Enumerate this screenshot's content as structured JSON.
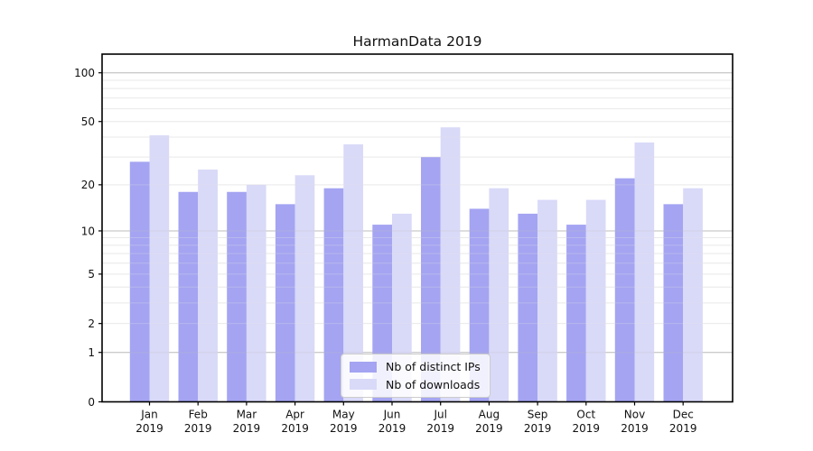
{
  "title": "HarmanData 2019",
  "colors": {
    "distinct_ips_bar": "#a4a4f2",
    "downloads_bar": "#d9d9f8",
    "grid_minor": "#eaeaea",
    "grid_major": "#bdbdbd",
    "axis": "#000000",
    "text": "#111111",
    "legend_border": "#cccccc"
  },
  "legend": {
    "items": [
      {
        "label": "Nb of distinct IPs",
        "color": "#a4a4f2"
      },
      {
        "label": "Nb of downloads",
        "color": "#d9d9f8"
      }
    ]
  },
  "chart_data": {
    "type": "bar",
    "title": "HarmanData 2019",
    "xlabel": "",
    "ylabel": "",
    "scale": "log1p",
    "grid": true,
    "legend_position": "lower center",
    "categories": [
      "Jan",
      "Feb",
      "Mar",
      "Apr",
      "May",
      "Jun",
      "Jul",
      "Aug",
      "Sep",
      "Oct",
      "Nov",
      "Dec"
    ],
    "year": "2019",
    "series": [
      {
        "name": "Nb of distinct IPs",
        "color": "#a4a4f2",
        "values": [
          28,
          18,
          18,
          15,
          19,
          11,
          30,
          14,
          13,
          11,
          22,
          15
        ]
      },
      {
        "name": "Nb of downloads",
        "color": "#d9d9f8",
        "values": [
          41,
          25,
          20,
          23,
          36,
          13,
          46,
          19,
          16,
          16,
          37,
          19
        ]
      }
    ],
    "yticks": [
      0,
      1,
      2,
      5,
      10,
      20,
      50,
      100
    ],
    "minor_gridlines": [
      2,
      3,
      4,
      5,
      6,
      7,
      8,
      9,
      20,
      30,
      40,
      50,
      60,
      70,
      80,
      90
    ],
    "major_gridlines": [
      1,
      10,
      100
    ],
    "ylim": [
      0,
      131
    ]
  }
}
